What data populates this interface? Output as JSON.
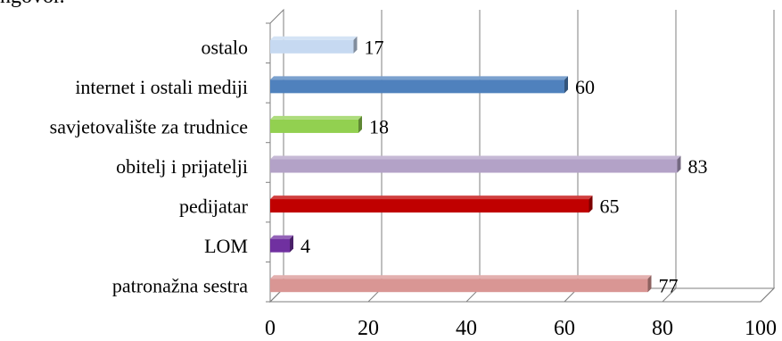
{
  "page": {
    "top_text": "ngovor."
  },
  "chart_data": {
    "type": "bar",
    "orientation": "horizontal",
    "categories": [
      "ostalo",
      "internet i ostali mediji",
      "savjetovalište za trudnice",
      "obitelj i prijatelji",
      "pedijatar",
      "LOM",
      "patronažna sestra"
    ],
    "values": [
      17,
      60,
      18,
      83,
      65,
      4,
      77
    ],
    "colors": [
      "#c6d9f1",
      "#4f81bd",
      "#92d050",
      "#b3a2c7",
      "#c00000",
      "#7030a0",
      "#d99694"
    ],
    "xticks": [
      "0",
      "20",
      "40",
      "60",
      "80",
      "100"
    ],
    "xlim": [
      0,
      100
    ],
    "grid": true,
    "three_d": true
  }
}
